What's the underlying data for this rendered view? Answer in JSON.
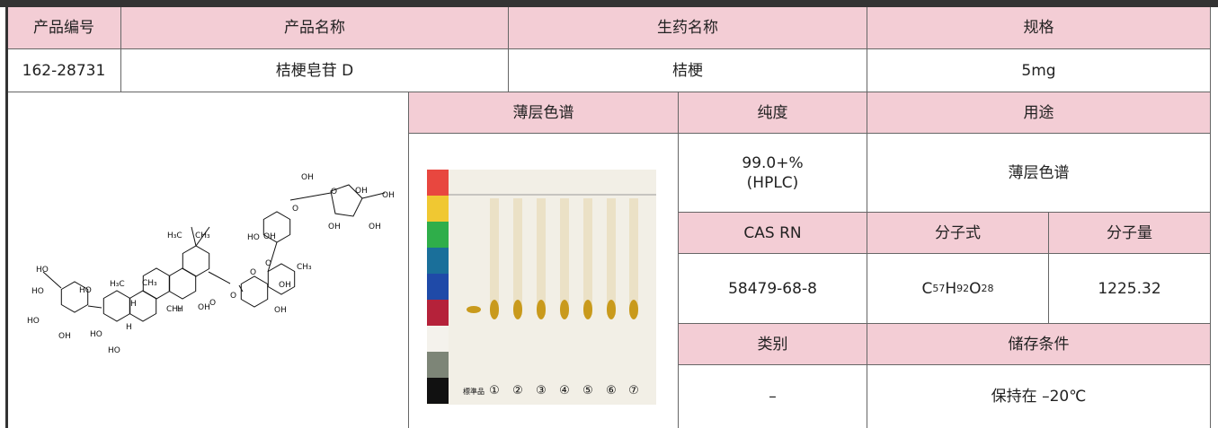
{
  "header": [
    "产品编号",
    "产品名称",
    "生药名称",
    "规格"
  ],
  "product": {
    "code": "162-28731",
    "name": "桔梗皂苷 D",
    "crude_drug": "桔梗",
    "size": "5mg"
  },
  "tlc": {
    "header": "薄层色谱",
    "lanes": [
      "標準品",
      "①",
      "②",
      "③",
      "④",
      "⑤",
      "⑥",
      "⑦"
    ]
  },
  "purity": {
    "header": "纯度",
    "value": [
      "99.0+%",
      "(HPLC)"
    ]
  },
  "use": {
    "header": "用途",
    "value": "薄层色谱"
  },
  "cas": {
    "header": "CAS RN",
    "value": "58479-68-8"
  },
  "formula": {
    "header": "分子式",
    "parts": [
      [
        "C",
        "57"
      ],
      [
        "H",
        "92"
      ],
      [
        "O",
        "28"
      ]
    ]
  },
  "weight": {
    "header": "分子量",
    "value": "1225.32"
  },
  "category": {
    "header": "类别",
    "value": "–"
  },
  "storage": {
    "header": "储存条件",
    "value": "保持在 –20℃"
  },
  "structure_labels": [
    "HO",
    "HO",
    "HO",
    "OH",
    "HO",
    "H₃C",
    "H₃C",
    "CH₃",
    "HO",
    "HO",
    "H",
    "H",
    "CH₃",
    "H",
    "CH₃",
    "OH",
    "O",
    "O",
    "OH",
    "HO",
    "O",
    "O",
    "OH",
    "OH",
    "CH₃",
    "OH",
    "O",
    "O",
    "OH",
    "OH",
    "OH",
    "OH"
  ]
}
